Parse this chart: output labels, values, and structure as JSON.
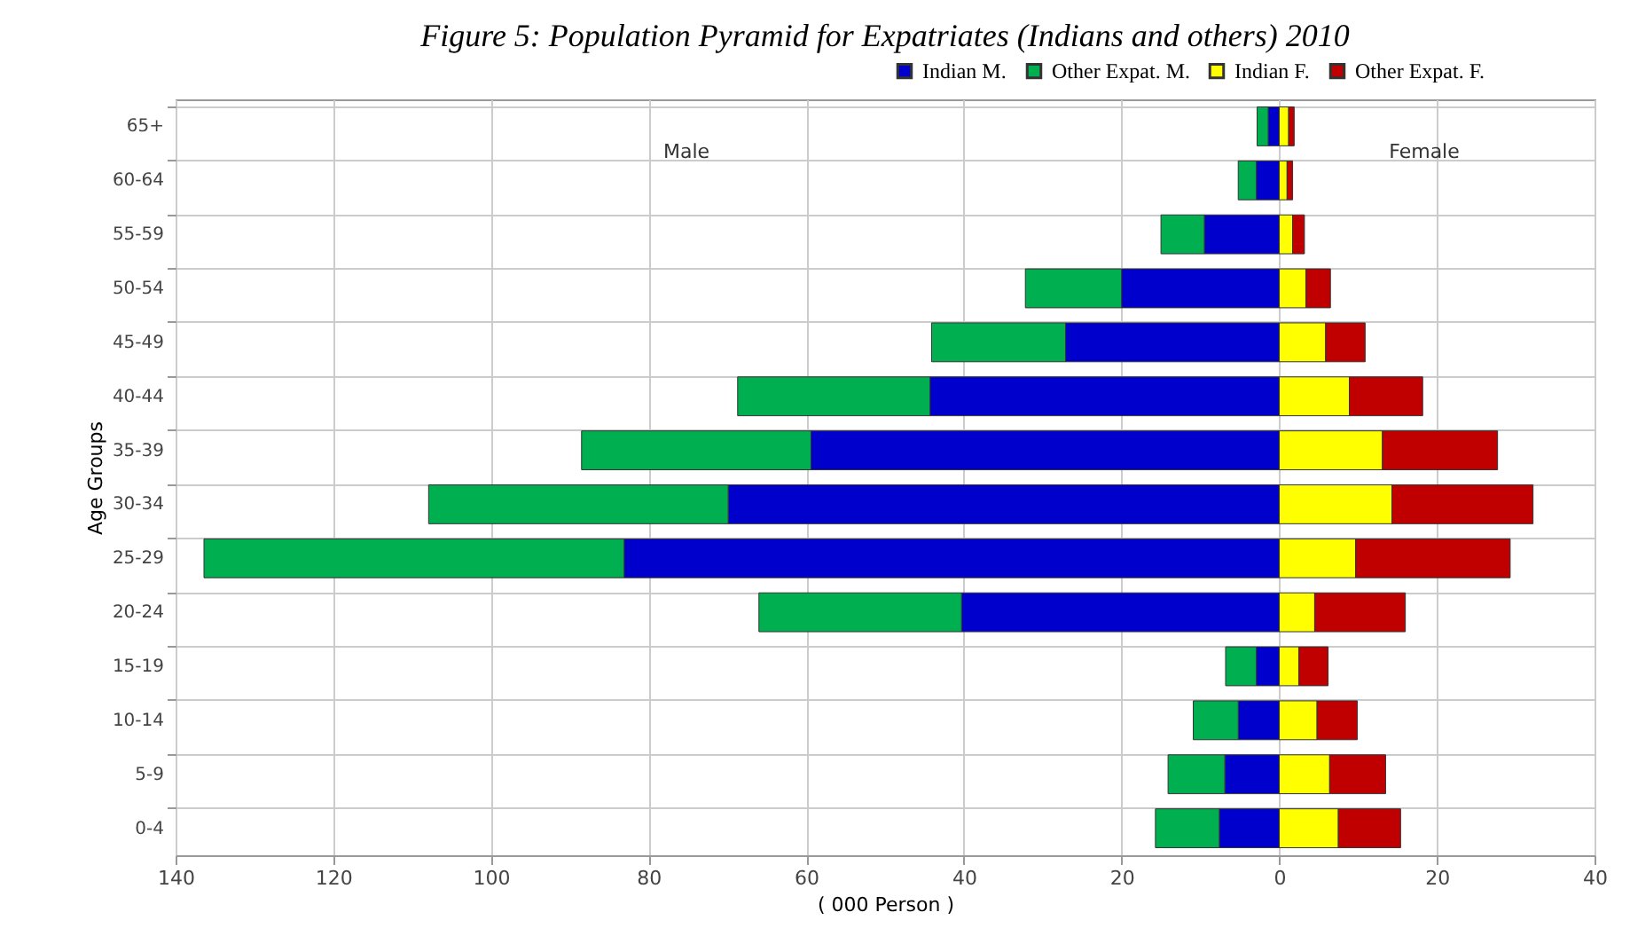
{
  "chart_data": {
    "type": "bar",
    "orientation": "horizontal",
    "stacked": true,
    "title": "Figure 5: Population Pyramid for Expatriates (Indians and others) 2010",
    "xlabel": "( 000 Person )",
    "ylabel": "Age Groups",
    "annotations": [
      "Male",
      "Female"
    ],
    "categories": [
      "65+",
      "60-64",
      "55-59",
      "50-54",
      "45-49",
      "40-44",
      "35-39",
      "30-34",
      "25-29",
      "20-24",
      "15-19",
      "10-14",
      "5-9",
      "0-4"
    ],
    "series": [
      {
        "name": "Indian M.",
        "color": "#0000cc",
        "values": [
          -1.4,
          -2.9,
          -9.5,
          -20.0,
          -27.1,
          -44.3,
          -59.4,
          -69.9,
          -83.1,
          -40.3,
          -2.9,
          -5.2,
          -6.9,
          -7.6
        ]
      },
      {
        "name": "Other Expat. M.",
        "color": "#00b050",
        "values": [
          -1.4,
          -2.3,
          -5.5,
          -12.2,
          -17.0,
          -24.4,
          -29.1,
          -38.0,
          -53.3,
          -25.7,
          -3.9,
          -5.7,
          -7.2,
          -8.1
        ]
      },
      {
        "name": "Indian F.",
        "color": "#ffff00",
        "values": [
          1.2,
          1.0,
          1.7,
          3.4,
          5.9,
          8.9,
          13.1,
          14.3,
          9.7,
          4.5,
          2.5,
          4.8,
          6.4,
          7.5
        ]
      },
      {
        "name": "Other Expat. F.",
        "color": "#c00000",
        "values": [
          0.7,
          0.7,
          1.5,
          3.1,
          5.0,
          9.3,
          14.6,
          17.9,
          19.6,
          11.5,
          3.7,
          5.1,
          7.1,
          7.9
        ]
      }
    ],
    "xlim": [
      -140,
      40
    ],
    "xticks": [
      {
        "value": -140,
        "label": "140"
      },
      {
        "value": -120,
        "label": "120"
      },
      {
        "value": -100,
        "label": "100"
      },
      {
        "value": -80,
        "label": "80"
      },
      {
        "value": -60,
        "label": "60"
      },
      {
        "value": -40,
        "label": "40"
      },
      {
        "value": -20,
        "label": "20"
      },
      0,
      20,
      40
    ],
    "grid": true,
    "legend": "top right"
  }
}
